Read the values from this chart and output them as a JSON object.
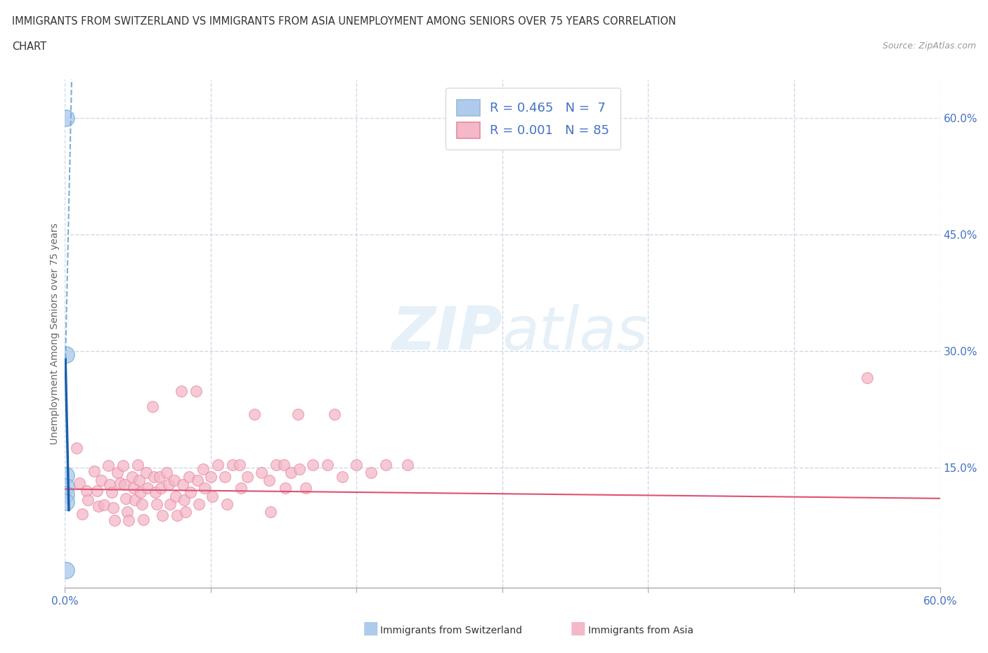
{
  "title_line1": "IMMIGRANTS FROM SWITZERLAND VS IMMIGRANTS FROM ASIA UNEMPLOYMENT AMONG SENIORS OVER 75 YEARS CORRELATION",
  "title_line2": "CHART",
  "source": "Source: ZipAtlas.com",
  "ylabel": "Unemployment Among Seniors over 75 years",
  "legend_entries": [
    {
      "label": "Immigrants from Switzerland",
      "color": "#aecbee",
      "R": "0.465",
      "N": "7"
    },
    {
      "label": "Immigrants from Asia",
      "color": "#f4b8c8",
      "R": "0.001",
      "N": "85"
    }
  ],
  "swiss_points": [
    [
      0.001,
      0.6
    ],
    [
      0.001,
      0.295
    ],
    [
      0.001,
      0.14
    ],
    [
      0.001,
      0.125
    ],
    [
      0.001,
      0.115
    ],
    [
      0.001,
      0.105
    ],
    [
      0.001,
      0.018
    ]
  ],
  "asia_points": [
    [
      0.008,
      0.175
    ],
    [
      0.01,
      0.13
    ],
    [
      0.012,
      0.09
    ],
    [
      0.015,
      0.12
    ],
    [
      0.016,
      0.108
    ],
    [
      0.02,
      0.145
    ],
    [
      0.022,
      0.12
    ],
    [
      0.023,
      0.1
    ],
    [
      0.025,
      0.133
    ],
    [
      0.027,
      0.102
    ],
    [
      0.03,
      0.152
    ],
    [
      0.031,
      0.128
    ],
    [
      0.032,
      0.118
    ],
    [
      0.033,
      0.098
    ],
    [
      0.034,
      0.082
    ],
    [
      0.036,
      0.143
    ],
    [
      0.038,
      0.13
    ],
    [
      0.04,
      0.152
    ],
    [
      0.041,
      0.128
    ],
    [
      0.042,
      0.11
    ],
    [
      0.043,
      0.093
    ],
    [
      0.044,
      0.082
    ],
    [
      0.046,
      0.138
    ],
    [
      0.047,
      0.123
    ],
    [
      0.048,
      0.108
    ],
    [
      0.05,
      0.153
    ],
    [
      0.051,
      0.133
    ],
    [
      0.052,
      0.118
    ],
    [
      0.053,
      0.103
    ],
    [
      0.054,
      0.083
    ],
    [
      0.056,
      0.143
    ],
    [
      0.057,
      0.123
    ],
    [
      0.06,
      0.228
    ],
    [
      0.061,
      0.138
    ],
    [
      0.062,
      0.118
    ],
    [
      0.063,
      0.103
    ],
    [
      0.065,
      0.138
    ],
    [
      0.066,
      0.123
    ],
    [
      0.067,
      0.088
    ],
    [
      0.07,
      0.143
    ],
    [
      0.071,
      0.128
    ],
    [
      0.072,
      0.103
    ],
    [
      0.075,
      0.133
    ],
    [
      0.076,
      0.113
    ],
    [
      0.077,
      0.088
    ],
    [
      0.08,
      0.248
    ],
    [
      0.081,
      0.128
    ],
    [
      0.082,
      0.108
    ],
    [
      0.083,
      0.093
    ],
    [
      0.085,
      0.138
    ],
    [
      0.086,
      0.118
    ],
    [
      0.09,
      0.248
    ],
    [
      0.091,
      0.133
    ],
    [
      0.092,
      0.103
    ],
    [
      0.095,
      0.148
    ],
    [
      0.096,
      0.123
    ],
    [
      0.1,
      0.138
    ],
    [
      0.101,
      0.113
    ],
    [
      0.105,
      0.153
    ],
    [
      0.11,
      0.138
    ],
    [
      0.111,
      0.103
    ],
    [
      0.115,
      0.153
    ],
    [
      0.12,
      0.153
    ],
    [
      0.121,
      0.123
    ],
    [
      0.125,
      0.138
    ],
    [
      0.13,
      0.218
    ],
    [
      0.135,
      0.143
    ],
    [
      0.14,
      0.133
    ],
    [
      0.141,
      0.093
    ],
    [
      0.145,
      0.153
    ],
    [
      0.15,
      0.153
    ],
    [
      0.151,
      0.123
    ],
    [
      0.155,
      0.143
    ],
    [
      0.16,
      0.218
    ],
    [
      0.161,
      0.148
    ],
    [
      0.165,
      0.123
    ],
    [
      0.17,
      0.153
    ],
    [
      0.18,
      0.153
    ],
    [
      0.185,
      0.218
    ],
    [
      0.19,
      0.138
    ],
    [
      0.2,
      0.153
    ],
    [
      0.21,
      0.143
    ],
    [
      0.22,
      0.153
    ],
    [
      0.235,
      0.153
    ],
    [
      0.55,
      0.265
    ]
  ],
  "swiss_color": "#aecbee",
  "swiss_edge_color": "#7aafd4",
  "asia_color": "#f4b8c8",
  "asia_edge_color": "#e888a0",
  "swiss_trend_color": "#1a5fa8",
  "swiss_trend_dashed_color": "#7aafd4",
  "asia_trend_color": "#e05070",
  "background_color": "#ffffff",
  "grid_color": "#d0d8e8",
  "xlim": [
    0,
    0.6
  ],
  "ylim": [
    -0.005,
    0.65
  ],
  "watermark": "ZIPatlas",
  "title_fontsize": 11,
  "tick_label_color": "#4472c4",
  "ytick_vals": [
    0.15,
    0.3,
    0.45,
    0.6
  ],
  "ytick_labels": [
    "15.0%",
    "30.0%",
    "45.0%",
    "60.0%"
  ],
  "xtick_vals": [
    0.0,
    0.1,
    0.2,
    0.3,
    0.4,
    0.5,
    0.6
  ],
  "xtick_labels_show": {
    "0.0": "0.0%",
    "0.6": "60.0%"
  }
}
